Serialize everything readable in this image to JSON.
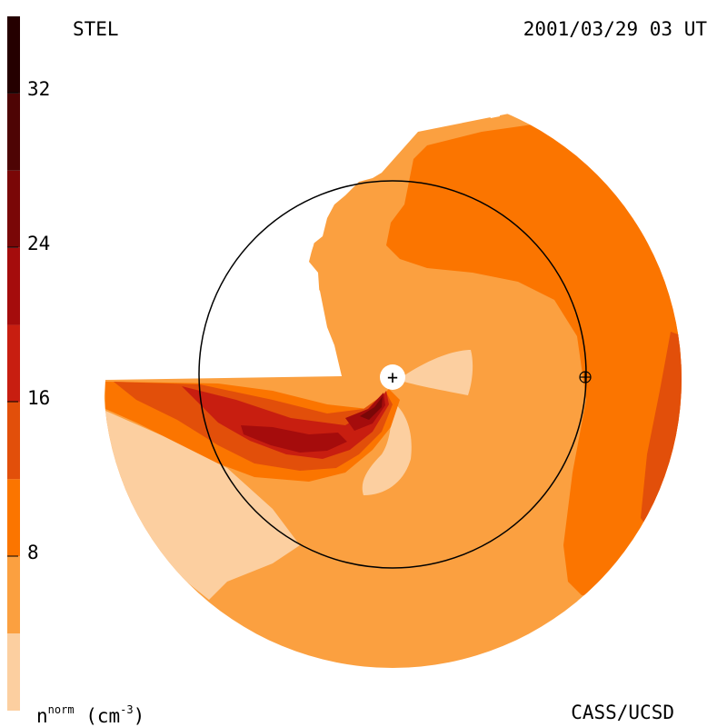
{
  "header": {
    "source": "STEL",
    "timestamp": "2001/03/29 03 UT"
  },
  "footer": {
    "credit": "CASS/UCSD",
    "unit_symbol": "n",
    "unit_superscript": "norm",
    "unit_text": "(cm",
    "unit_exponent": "-3",
    "unit_close": ")"
  },
  "chart_data": {
    "type": "heatmap",
    "variable": "normalized density",
    "colorbar": {
      "ticks": [
        "8",
        "16",
        "24",
        "32"
      ],
      "tick_values": [
        8,
        16,
        24,
        32
      ],
      "range": [
        0,
        36
      ],
      "levels": [
        {
          "min": 0,
          "max": 4,
          "color": "#fccfa0"
        },
        {
          "min": 4,
          "max": 8,
          "color": "#fba040"
        },
        {
          "min": 8,
          "max": 12,
          "color": "#fb7500"
        },
        {
          "min": 12,
          "max": 16,
          "color": "#e24f0a"
        },
        {
          "min": 16,
          "max": 20,
          "color": "#c81e10"
        },
        {
          "min": 20,
          "max": 24,
          "color": "#a50c0c"
        },
        {
          "min": 24,
          "max": 28,
          "color": "#7a0707"
        },
        {
          "min": 28,
          "max": 32,
          "color": "#4e0404"
        },
        {
          "min": 32,
          "max": 36,
          "color": "#250000"
        }
      ]
    },
    "markers": [
      {
        "name": "sun",
        "symbol": "+"
      },
      {
        "name": "earth",
        "symbol": "⊕"
      }
    ]
  }
}
